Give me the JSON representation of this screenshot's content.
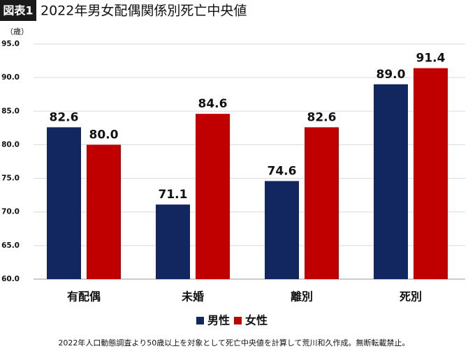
{
  "chart_data": {
    "type": "bar",
    "badge": "図表1",
    "title": "2022年男女配偶関係別死亡中央値",
    "y_unit": "（歳）",
    "categories": [
      "有配偶",
      "未婚",
      "離別",
      "死別"
    ],
    "series": [
      {
        "name": "男性",
        "color": "#12275f",
        "values": [
          82.6,
          71.1,
          74.6,
          89.0
        ],
        "value_labels": [
          "82.6",
          "71.1",
          "74.6",
          "89.0"
        ]
      },
      {
        "name": "女性",
        "color": "#c00000",
        "values": [
          80.0,
          84.6,
          82.6,
          91.4
        ],
        "value_labels": [
          "80.0",
          "84.6",
          "82.6",
          "91.4"
        ]
      }
    ],
    "ylim": [
      60,
      95
    ],
    "yticks": [
      {
        "value": 60,
        "label": "60.0"
      },
      {
        "value": 65,
        "label": "65.0"
      },
      {
        "value": 70,
        "label": "70.0"
      },
      {
        "value": 75,
        "label": "75.0"
      },
      {
        "value": 80,
        "label": "80.0"
      },
      {
        "value": 85,
        "label": "85.0"
      },
      {
        "value": 90,
        "label": "90.0"
      },
      {
        "value": 95,
        "label": "95.0"
      }
    ],
    "grid": true,
    "legend": "bottom",
    "note": "2022年人口動態調査より50歳以上を対象として死亡中央値を計算して荒川和久作成。無断転載禁止。"
  }
}
